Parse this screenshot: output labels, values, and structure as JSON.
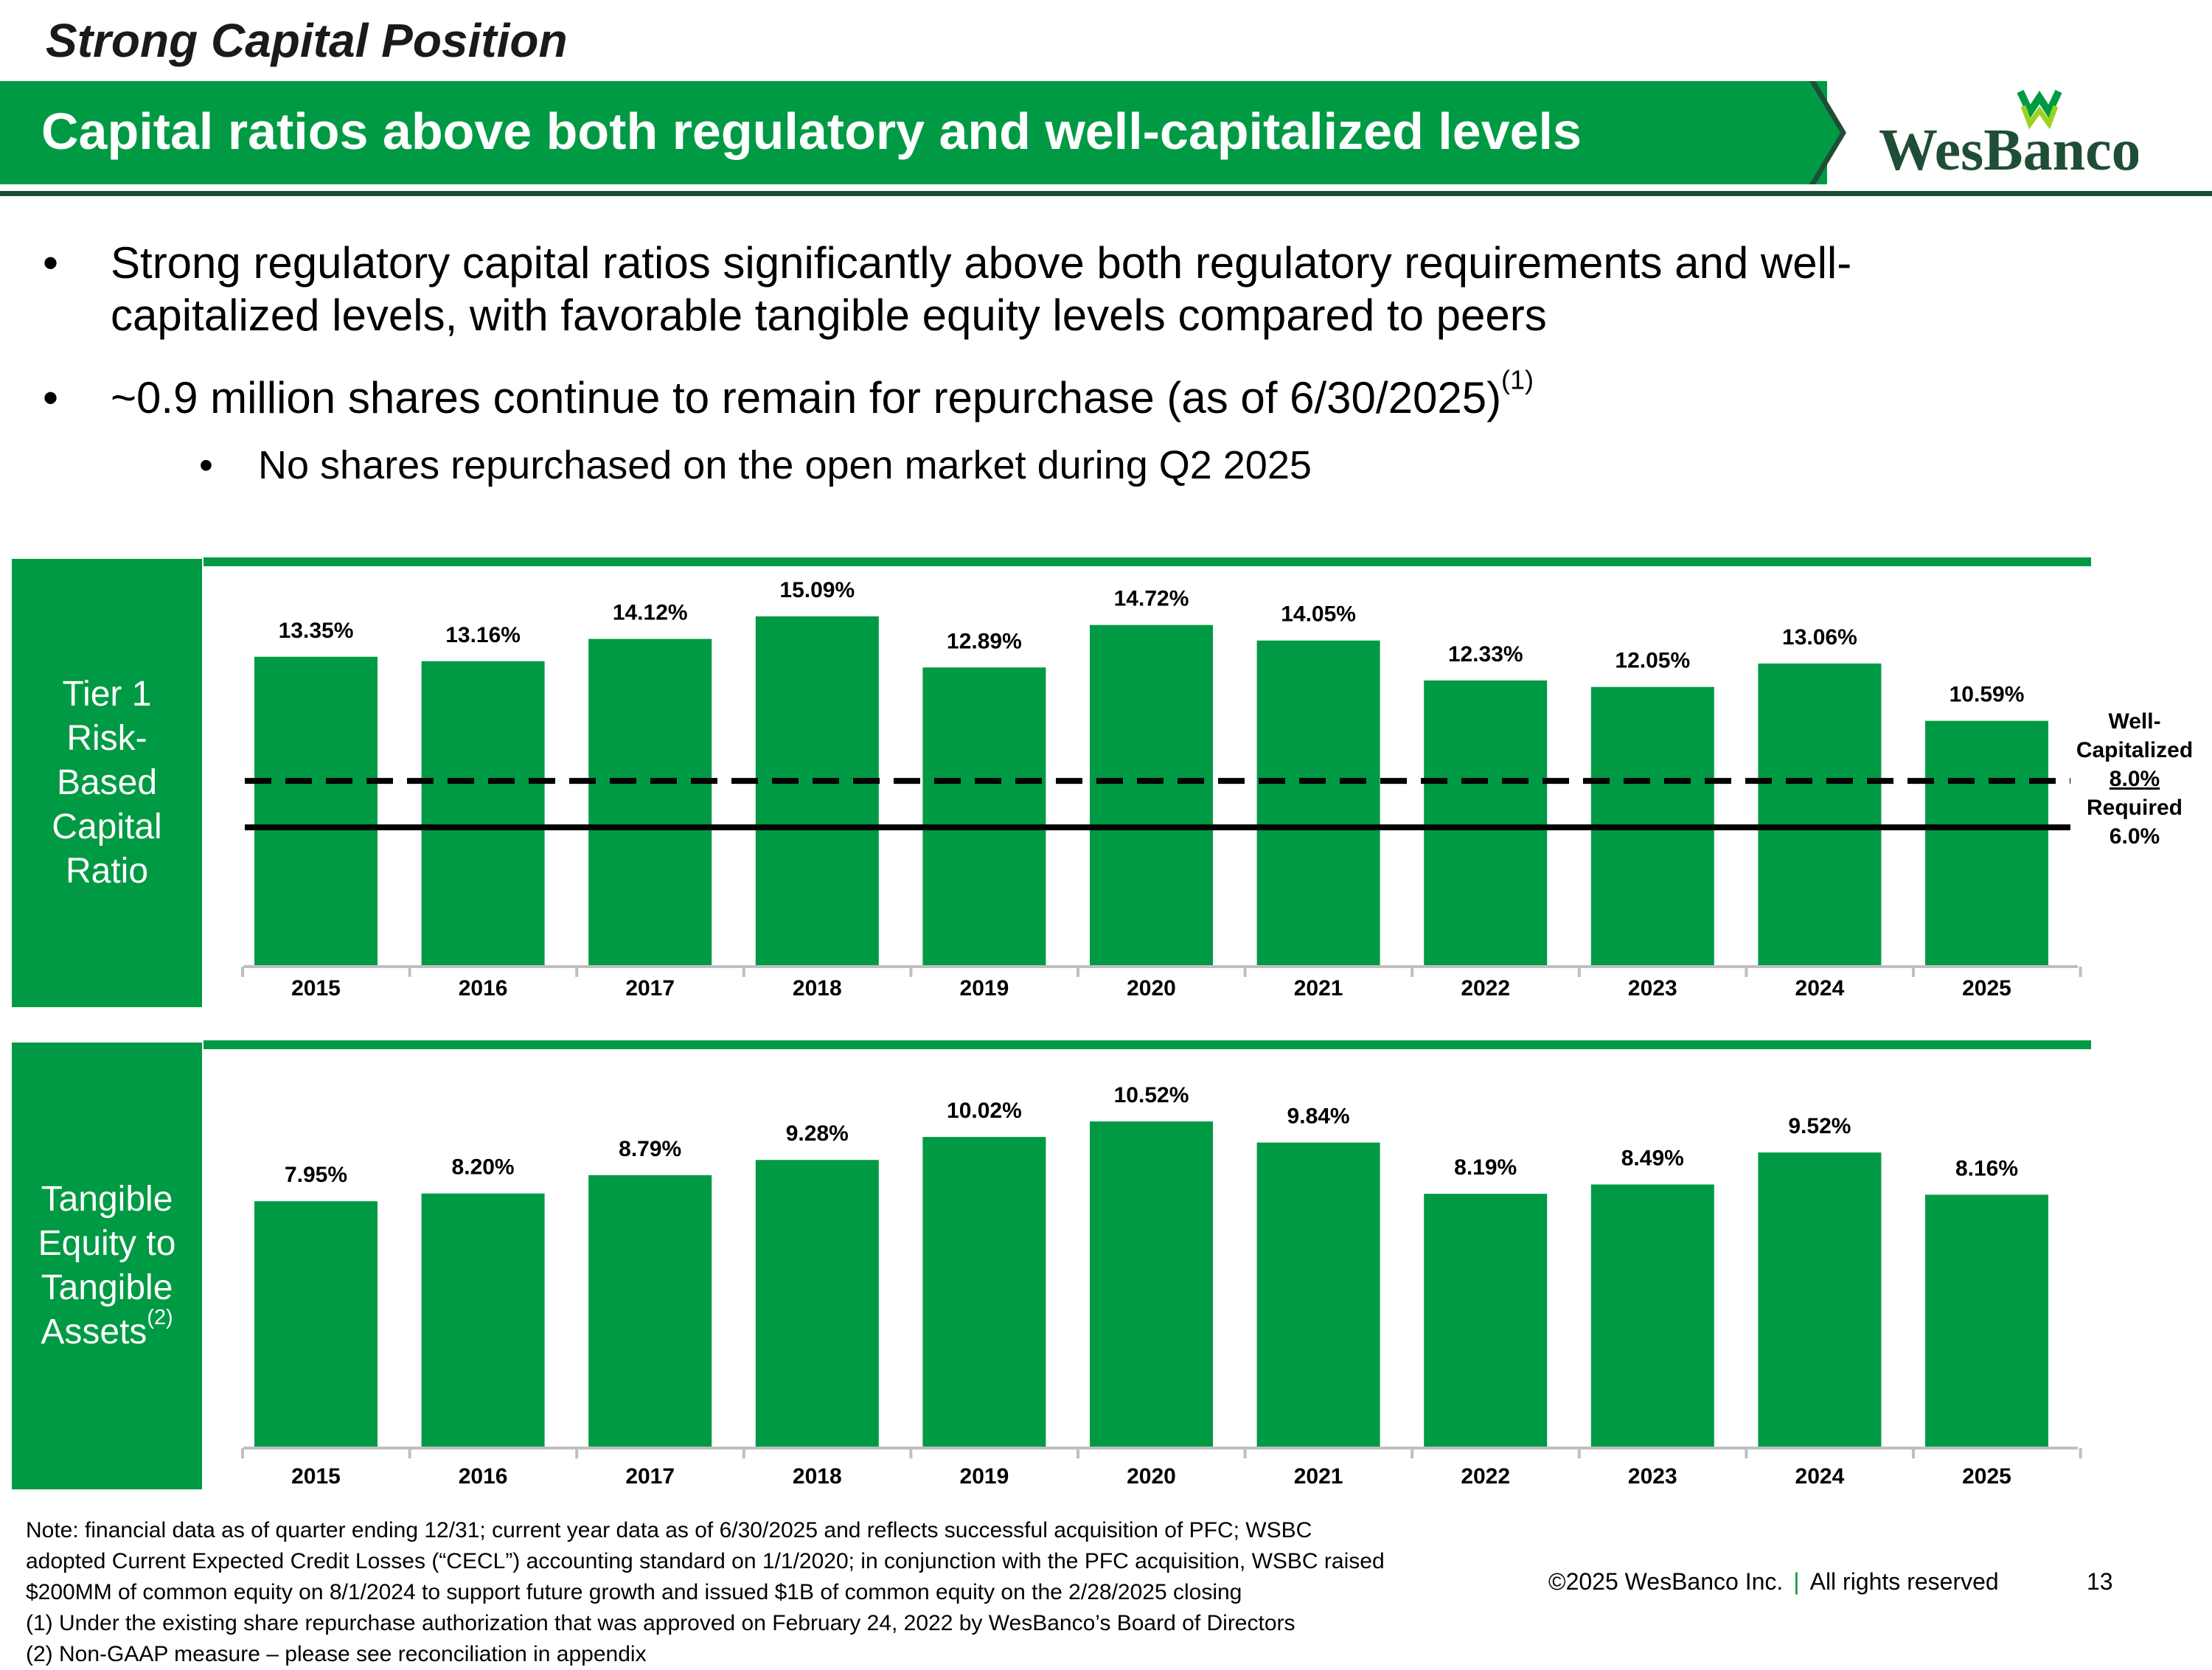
{
  "header": {
    "kicker": "Strong Capital Position",
    "title": "Capital ratios above both regulatory and well-capitalized levels",
    "logo_text": "WesBanco",
    "brand_color": "#009A44"
  },
  "bullets": {
    "b1": "Strong regulatory capital ratios significantly above both regulatory requirements and well-",
    "b1_cont": "capitalized levels, with favorable tangible equity levels compared to peers",
    "b2": "~0.9 million shares continue to remain for repurchase (as of 6/30/2025)",
    "b2_ref": "(1)",
    "b2_sub": "No shares repurchased on the open market during Q2 2025",
    "marker": "•"
  },
  "panels": {
    "tier1_label": [
      "Tier 1",
      "Risk-",
      "Based",
      "Capital",
      "Ratio"
    ],
    "tangible_label": [
      "Tangible",
      "Equity to",
      "Tangible",
      "Assets"
    ],
    "tangible_ref": "(2)"
  },
  "chart_data": [
    {
      "type": "bar",
      "title": "Tier 1 Risk-Based Capital Ratio",
      "categories": [
        "2015",
        "2016",
        "2017",
        "2018",
        "2019",
        "2020",
        "2021",
        "2022",
        "2023",
        "2024",
        "2025"
      ],
      "values": [
        13.35,
        13.16,
        14.12,
        15.09,
        12.89,
        14.72,
        14.05,
        12.33,
        12.05,
        13.06,
        10.59
      ],
      "value_labels": [
        "13.35%",
        "13.16%",
        "14.12%",
        "15.09%",
        "12.89%",
        "14.72%",
        "14.05%",
        "12.33%",
        "12.05%",
        "13.06%",
        "10.59%"
      ],
      "ylim": [
        0,
        16
      ],
      "reference_lines": [
        {
          "name": "Well-Capitalized",
          "value": 8.0,
          "style": "dashed",
          "label_lines": [
            "Well-",
            "Capitalized",
            "8.0%"
          ]
        },
        {
          "name": "Required",
          "value": 6.0,
          "style": "solid",
          "label_lines": [
            "Required",
            "6.0%"
          ]
        }
      ],
      "color": "#009A44"
    },
    {
      "type": "bar",
      "title": "Tangible Equity to Tangible Assets",
      "categories": [
        "2015",
        "2016",
        "2017",
        "2018",
        "2019",
        "2020",
        "2021",
        "2022",
        "2023",
        "2024",
        "2025"
      ],
      "values": [
        7.95,
        8.2,
        8.79,
        9.28,
        10.02,
        10.52,
        9.84,
        8.19,
        8.49,
        9.52,
        8.16
      ],
      "value_labels": [
        "7.95%",
        "8.20%",
        "8.79%",
        "9.28%",
        "10.02%",
        "10.52%",
        "9.84%",
        "8.19%",
        "8.49%",
        "9.52%",
        "8.16%"
      ],
      "ylim": [
        0,
        11.5
      ],
      "color": "#009A44"
    }
  ],
  "footnotes": {
    "note_lines": [
      "Note: financial data as of quarter ending 12/31; current year data as of 6/30/2025 and reflects successful acquisition of PFC; WSBC",
      "adopted Current Expected Credit Losses (“CECL”) accounting standard on 1/1/2020; in conjunction with the PFC acquisition, WSBC raised",
      "$200MM of common equity on 8/1/2024 to support future growth and issued $1B of common equity on the 2/28/2025 closing"
    ],
    "fn1": "(1)   Under the existing share repurchase authorization that was approved on February 24, 2022 by WesBanco’s Board of Directors",
    "fn2": "(2)   Non-GAAP measure – please see reconciliation in appendix"
  },
  "footer": {
    "copyright": "©2025 WesBanco Inc.",
    "separator": "|",
    "rights": "All rights reserved",
    "page_number": "13"
  }
}
